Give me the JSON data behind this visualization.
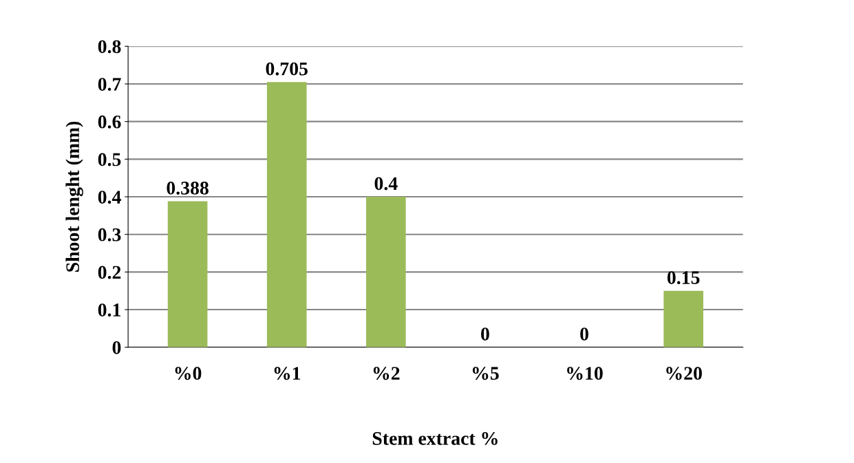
{
  "chart_data": {
    "type": "bar",
    "xlabel": "Stem extract %",
    "ylabel": "Shoot lenght (mm)",
    "categories": [
      "%0",
      "%1",
      "%2",
      "%5",
      "%10",
      "%20"
    ],
    "values": [
      0.388,
      0.705,
      0.4,
      0,
      0,
      0.15
    ],
    "color": "#9bbb59",
    "ylim": [
      0,
      0.8
    ],
    "yticks": [
      0,
      0.1,
      0.2,
      0.3,
      0.4,
      0.5,
      0.6,
      0.7,
      0.8
    ],
    "grid": "y",
    "data_labels": true
  }
}
